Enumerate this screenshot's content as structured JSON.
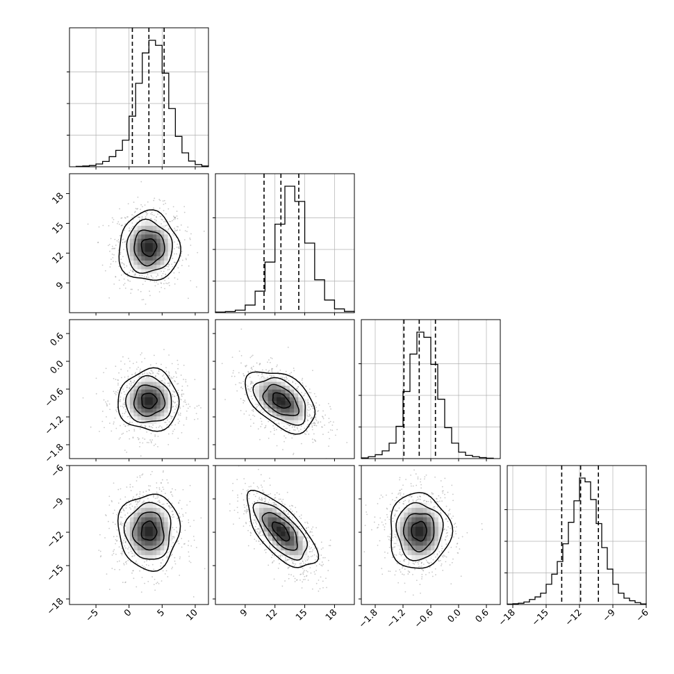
{
  "chart_data": {
    "type": "corner",
    "title": "",
    "grid": true,
    "params": [
      {
        "range": [
          -9,
          12
        ],
        "ticks": [
          -5,
          0,
          5,
          10
        ],
        "tick_labels": [
          "−5",
          "0",
          "5",
          "10"
        ],
        "quantiles": [
          0.5,
          3.0,
          5.3
        ],
        "mean": 3.0,
        "sd": 2.3
      },
      {
        "range": [
          6,
          20
        ],
        "ticks": [
          9,
          12,
          15,
          18
        ],
        "tick_labels": [
          "9",
          "12",
          "15",
          "18"
        ],
        "quantiles": [
          10.9,
          12.6,
          14.4
        ],
        "mean": 12.6,
        "sd": 1.75
      },
      {
        "range": [
          -2.1,
          0.9
        ],
        "ticks": [
          -1.8,
          -1.2,
          -0.6,
          0.0,
          0.6
        ],
        "tick_labels": [
          "−1.8",
          "−1.2",
          "−0.6",
          "0.0",
          "0.6"
        ],
        "quantiles": [
          -1.18,
          -0.85,
          -0.5
        ],
        "mean": -0.85,
        "sd": 0.33
      },
      {
        "range": [
          -18.5,
          -6
        ],
        "ticks": [
          -18,
          -15,
          -12,
          -9,
          -6
        ],
        "tick_labels": [
          "−18",
          "−15",
          "−12",
          "−9",
          "−6"
        ],
        "quantiles": [
          -13.6,
          -11.9,
          -10.3
        ],
        "mean": -11.9,
        "sd": 1.7
      }
    ],
    "histograms": [
      {
        "bins": [
          -8.0,
          -7.0,
          -6.0,
          -5.0,
          -4.0,
          -3.0,
          -2.0,
          -1.0,
          0.0,
          1.0,
          2.0,
          3.0,
          4.0,
          5.0,
          6.0,
          7.0,
          8.0,
          9.0,
          10.0,
          11.0
        ],
        "values": [
          0.3,
          0.6,
          1.0,
          2.2,
          4.2,
          8,
          13,
          21,
          40,
          66,
          90,
          100,
          96,
          74,
          46,
          24,
          11,
          4.5,
          1.8,
          0.6
        ]
      },
      {
        "bins": [
          6,
          7,
          8,
          9,
          10,
          11,
          12,
          13,
          14,
          15,
          16,
          17,
          18,
          19
        ],
        "values": [
          0.5,
          0.9,
          2,
          6,
          17,
          40,
          70,
          100,
          88,
          55,
          26,
          10,
          3,
          1
        ]
      },
      {
        "bins": [
          -2.1,
          -1.95,
          -1.8,
          -1.65,
          -1.5,
          -1.35,
          -1.2,
          -1.05,
          -0.9,
          -0.75,
          -0.6,
          -0.45,
          -0.3,
          -0.15,
          0.0,
          0.15,
          0.3,
          0.45,
          0.6
        ],
        "values": [
          0.5,
          1.5,
          3,
          6,
          12,
          25,
          52,
          81,
          98,
          94,
          73,
          46,
          24,
          12,
          5,
          2.5,
          1.5,
          0.8,
          0.3
        ]
      },
      {
        "bins": [
          -18.5,
          -18,
          -17.5,
          -17,
          -16.5,
          -16,
          -15.5,
          -15,
          -14.5,
          -14,
          -13.5,
          -13,
          -12.5,
          -12,
          -11.5,
          -11,
          -10.5,
          -10,
          -9.5,
          -9,
          -8.5,
          -8,
          -7.5,
          -7,
          -6.5
        ],
        "values": [
          0.3,
          0.6,
          1,
          2,
          4,
          6,
          9,
          16,
          24,
          34,
          48,
          65,
          82,
          100,
          97,
          83,
          64,
          45,
          28,
          16,
          9,
          5,
          3,
          1.5,
          0.5
        ]
      }
    ],
    "pairs": [
      {
        "x": 0,
        "y": 1,
        "center": [
          3.0,
          12.6
        ],
        "sd": [
          2.3,
          1.75
        ],
        "rho": 0.0
      },
      {
        "x": 0,
        "y": 2,
        "center": [
          3.0,
          -0.85
        ],
        "sd": [
          2.3,
          0.33
        ],
        "rho": 0.0
      },
      {
        "x": 1,
        "y": 2,
        "center": [
          12.6,
          -0.85
        ],
        "sd": [
          1.75,
          0.33
        ],
        "rho": -0.45
      },
      {
        "x": 0,
        "y": 3,
        "center": [
          3.0,
          -11.9
        ],
        "sd": [
          2.3,
          1.7
        ],
        "rho": 0.0
      },
      {
        "x": 1,
        "y": 3,
        "center": [
          12.6,
          -11.9
        ],
        "sd": [
          1.75,
          1.7
        ],
        "rho": -0.68
      },
      {
        "x": 2,
        "y": 3,
        "center": [
          -0.85,
          -11.9
        ],
        "sd": [
          0.33,
          1.7
        ],
        "rho": 0.0
      }
    ],
    "contour_levels_sigma": [
      0.5,
      1.0,
      1.5,
      2.0
    ],
    "colors": {
      "line": "#000000",
      "grid": "#b0b0b0",
      "scatter": "#9a9a9a"
    }
  }
}
